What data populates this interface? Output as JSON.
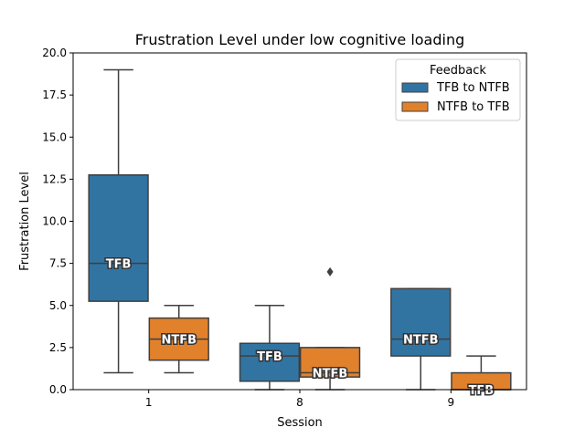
{
  "chart_data": {
    "type": "box",
    "title": "Frustration Level under low cognitive loading",
    "xlabel": "Session",
    "ylabel": "Frustration Level",
    "categories": [
      "1",
      "8",
      "9"
    ],
    "ylim": [
      0,
      20
    ],
    "yticks": [
      "0.0",
      "2.5",
      "5.0",
      "7.5",
      "10.0",
      "12.5",
      "15.0",
      "17.5",
      "20.0"
    ],
    "legend": {
      "title": "Feedback",
      "position": "top-right",
      "entries": [
        "TFB to NTFB",
        "NTFB to TFB"
      ]
    },
    "series": [
      {
        "name": "TFB to NTFB",
        "color": "#3274a1",
        "boxes": [
          {
            "category": "1",
            "whisker_low": 1,
            "q1": 5.25,
            "median": 7.5,
            "q3": 12.75,
            "whisker_high": 19,
            "outliers": [],
            "label": "TFB"
          },
          {
            "category": "8",
            "whisker_low": 0,
            "q1": 0.5,
            "median": 2,
            "q3": 2.75,
            "whisker_high": 5,
            "outliers": [],
            "label": "TFB"
          },
          {
            "category": "9",
            "whisker_low": 0,
            "q1": 2,
            "median": 3,
            "q3": 6,
            "whisker_high": 6,
            "outliers": [],
            "label": "NTFB"
          }
        ]
      },
      {
        "name": "NTFB to TFB",
        "color": "#e1812c",
        "boxes": [
          {
            "category": "1",
            "whisker_low": 1,
            "q1": 1.75,
            "median": 3,
            "q3": 4.25,
            "whisker_high": 5,
            "outliers": [],
            "label": "NTFB"
          },
          {
            "category": "8",
            "whisker_low": 0,
            "q1": 0.75,
            "median": 1,
            "q3": 2.5,
            "whisker_high": 2.5,
            "outliers": [
              7
            ],
            "label": "NTFB"
          },
          {
            "category": "9",
            "whisker_low": 0,
            "q1": 0,
            "median": 0,
            "q3": 1,
            "whisker_high": 2,
            "outliers": [],
            "label": "TFB"
          }
        ]
      }
    ]
  }
}
